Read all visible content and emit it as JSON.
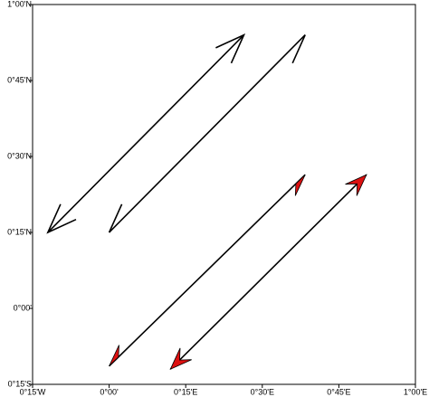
{
  "chart_data": {
    "type": "vector-map",
    "xlim": [
      -0.25,
      1.0
    ],
    "ylim": [
      -0.25,
      1.0
    ],
    "xticks": [
      {
        "value": -0.25,
        "label": "0°15'W"
      },
      {
        "value": 0,
        "label": "0°00'"
      },
      {
        "value": 0.25,
        "label": "0°15'E"
      },
      {
        "value": 0.5,
        "label": "0°30'E"
      },
      {
        "value": 0.75,
        "label": "0°45'E"
      },
      {
        "value": 1.0,
        "label": "1°00'E"
      }
    ],
    "yticks": [
      {
        "value": -0.25,
        "label": "0°15'S"
      },
      {
        "value": 0,
        "label": "0°00'"
      },
      {
        "value": 0.25,
        "label": "0°15'N"
      },
      {
        "value": 0.5,
        "label": "0°30'N"
      },
      {
        "value": 0.75,
        "label": "0°45'N"
      },
      {
        "value": 1.0,
        "label": "1°00'N"
      }
    ],
    "arrows": [
      {
        "lon": [
          -0.2,
          0.44
        ],
        "lat": [
          0.25,
          0.9
        ],
        "head": "open",
        "color": "#000000"
      },
      {
        "lon": [
          0.0,
          0.64
        ],
        "lat": [
          0.25,
          0.9
        ],
        "head": "half-open",
        "color": "#000000"
      },
      {
        "lon": [
          0.0,
          0.64
        ],
        "lat": [
          -0.19,
          0.44
        ],
        "head": "half-filled",
        "color": "#dd1111"
      },
      {
        "lon": [
          0.2,
          0.84
        ],
        "lat": [
          -0.2,
          0.44
        ],
        "head": "filled",
        "color": "#dd1111"
      }
    ]
  }
}
